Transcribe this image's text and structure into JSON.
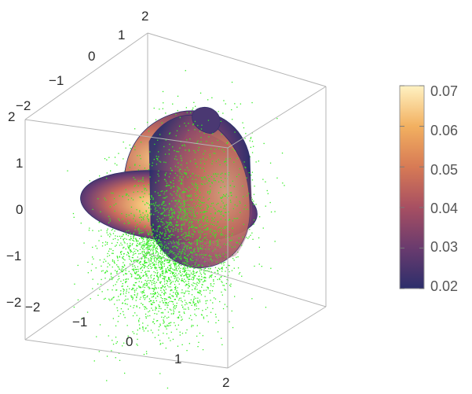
{
  "chart_data": {
    "type": "scatter",
    "plot": "3D scatter points with density-colored cross-section surfaces",
    "title": "",
    "xlabel": "",
    "ylabel": "",
    "zlabel": "",
    "xlim": [
      -2,
      2
    ],
    "ylim": [
      -2,
      2
    ],
    "zlim": [
      -2,
      2
    ],
    "axis_ticks": {
      "x": [
        "−2",
        "−1",
        "0",
        "1",
        "2"
      ],
      "y": [
        "−2",
        "−1",
        "0",
        "1",
        "2"
      ],
      "z": [
        "−2",
        "−1",
        "0",
        "1",
        "2"
      ]
    },
    "point_color": "#33ee22",
    "point_count_approx": 5000,
    "surfaces": [
      "horizontal ellipse (z = 0)",
      "vertical ellipse (x = 0)",
      "vertical ellipse (y = 0)"
    ],
    "colorbar": {
      "min": 0.02,
      "max": 0.07,
      "ticks": [
        "0.02",
        "0.03",
        "0.04",
        "0.05",
        "0.06",
        "0.07"
      ],
      "colors": [
        "#2c2e6b",
        "#6a3b6e",
        "#a74f62",
        "#d77a55",
        "#f2b060",
        "#fff2c2"
      ]
    },
    "grid": false,
    "legend": "colorbar right"
  }
}
